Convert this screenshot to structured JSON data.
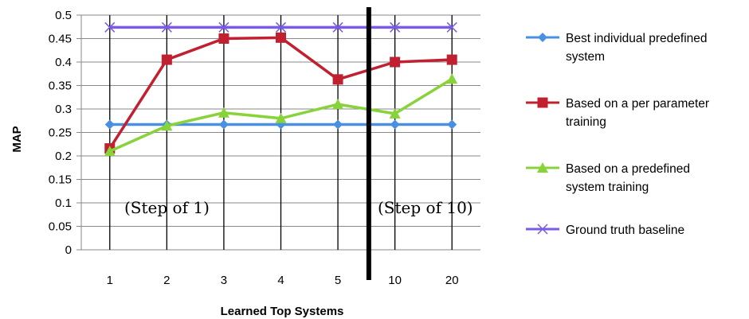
{
  "chart_data": {
    "type": "line",
    "title": "",
    "xlabel": "Learned Top Systems",
    "ylabel": "MAP",
    "categories": [
      "1",
      "2",
      "3",
      "4",
      "5",
      "10",
      "20"
    ],
    "ylim": [
      0,
      0.5
    ],
    "yticks": [
      "0",
      "0.05",
      "0.1",
      "0.15",
      "0.2",
      "0.25",
      "0.3",
      "0.35",
      "0.4",
      "0.45",
      "0.5"
    ],
    "grid": true,
    "legend_position": "right",
    "series": [
      {
        "name_lines": [
          "Best individual predefined",
          "system"
        ],
        "marker": "diamond",
        "color": "#4a90e2",
        "values": [
          0.267,
          0.267,
          0.267,
          0.267,
          0.267,
          0.267,
          0.267
        ]
      },
      {
        "name_lines": [
          "Based on a per parameter",
          "training"
        ],
        "marker": "square",
        "color": "#c0202f",
        "values": [
          0.216,
          0.405,
          0.45,
          0.452,
          0.363,
          0.4,
          0.405
        ]
      },
      {
        "name_lines": [
          "Based on a  predefined",
          "system training"
        ],
        "marker": "triangle",
        "color": "#88d23a",
        "values": [
          0.21,
          0.264,
          0.292,
          0.28,
          0.31,
          0.29,
          0.364
        ]
      },
      {
        "name_lines": [
          "Ground truth baseline"
        ],
        "marker": "x",
        "color": "#7a5ae6",
        "values": [
          0.474,
          0.474,
          0.474,
          0.474,
          0.474,
          0.474,
          0.474
        ]
      }
    ],
    "annotations": [
      "(Step of 1)",
      "(Step of 10)"
    ]
  }
}
